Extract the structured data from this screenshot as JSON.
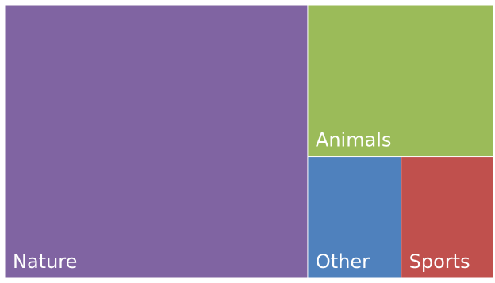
{
  "chart_data": {
    "type": "treemap",
    "title": "",
    "categories": [
      "Nature",
      "Animals",
      "Other",
      "Sports"
    ],
    "values": [
      62,
      21.1,
      8.5,
      8.4
    ],
    "colors": [
      "#8064a2",
      "#9bbb59",
      "#4f81bd",
      "#c0504d"
    ],
    "label_color": "#ffffff",
    "legend": "none"
  }
}
